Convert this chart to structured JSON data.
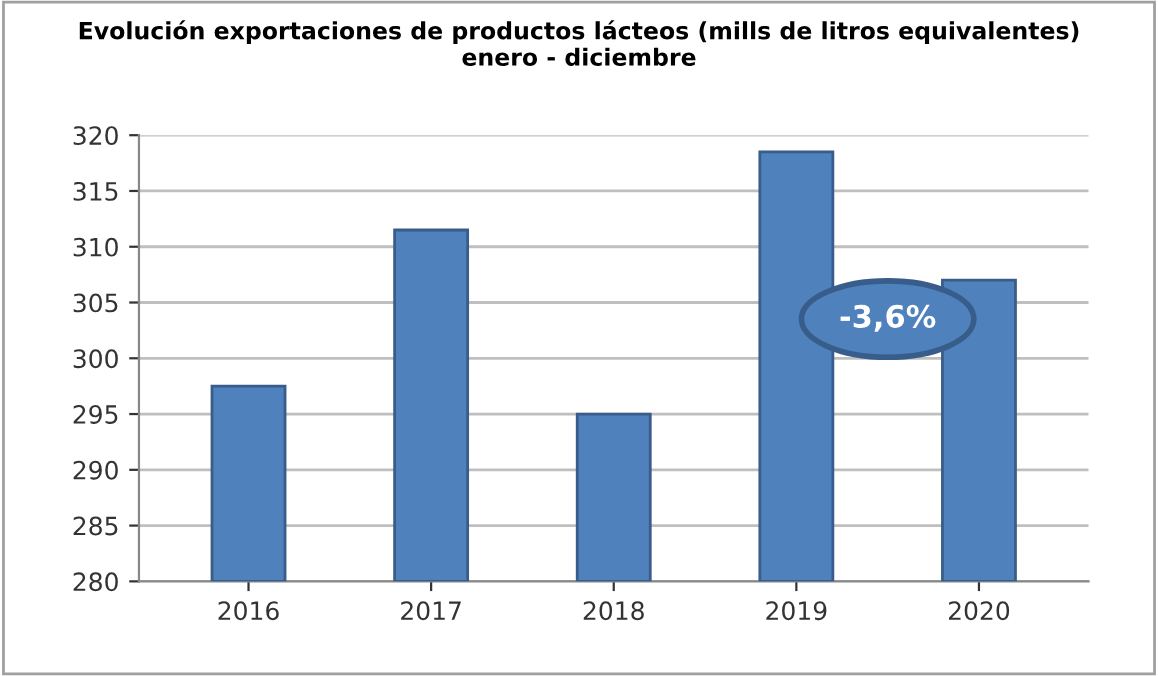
{
  "chart_data": {
    "type": "bar",
    "title": "Evolución exportaciones de productos lácteos (mills de litros equivalentes)\nenero - diciembre",
    "categories": [
      "2016",
      "2017",
      "2018",
      "2019",
      "2020"
    ],
    "values": [
      297.5,
      311.5,
      295,
      318.5,
      307
    ],
    "color": "#4f81bd",
    "ylim": [
      280,
      320
    ],
    "yticks": [
      280,
      285,
      290,
      295,
      300,
      305,
      310,
      315,
      320
    ],
    "grid": "y",
    "annotations": [
      {
        "text": "-3,6%",
        "x": "2020",
        "y": 307
      }
    ]
  }
}
